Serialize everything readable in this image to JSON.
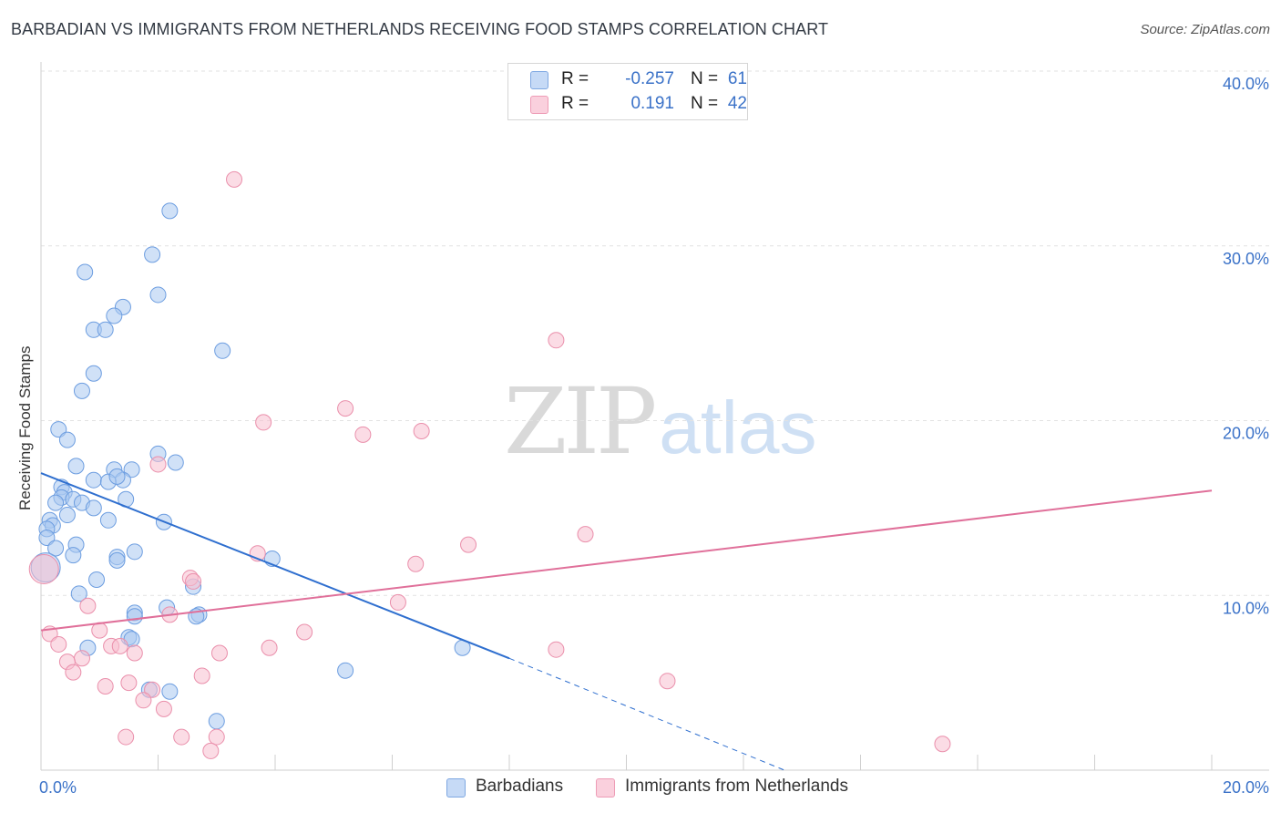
{
  "header": {
    "title": "BARBADIAN VS IMMIGRANTS FROM NETHERLANDS RECEIVING FOOD STAMPS CORRELATION CHART",
    "source": "Source: ZipAtlas.com"
  },
  "watermark": {
    "zip": "ZIP",
    "atlas": "atlas"
  },
  "legend": {
    "rows": [
      {
        "r_label": "R =",
        "r_value": "-0.257",
        "n_label": "N =",
        "n_value": "61",
        "color": "#a9c8f0"
      },
      {
        "r_label": "R =",
        "r_value": "0.191",
        "n_label": "N =",
        "n_value": "42",
        "color": "#f7bfd0"
      }
    ]
  },
  "bottom_legend": {
    "series1": "Barbadians",
    "series2": "Immigrants from Netherlands"
  },
  "chart_data": {
    "type": "scatter",
    "title": "BARBADIAN VS IMMIGRANTS FROM NETHERLANDS RECEIVING FOOD STAMPS CORRELATION CHART",
    "xlabel": "",
    "ylabel": "Receiving Food Stamps",
    "xlim": [
      0,
      20
    ],
    "ylim": [
      0,
      40
    ],
    "x_ticks": [
      0,
      20
    ],
    "x_tick_labels": [
      "0.0%",
      "20.0%"
    ],
    "y_ticks": [
      10,
      20,
      30,
      40
    ],
    "y_tick_labels": [
      "10.0%",
      "20.0%",
      "30.0%",
      "40.0%"
    ],
    "grid": true,
    "series": [
      {
        "name": "Barbadians",
        "color": "#a9c8f0",
        "stroke": "#6c9de0",
        "trend_color": "#2f6fcf",
        "r": -0.257,
        "n": 61,
        "trend": {
          "x0": 0,
          "y0": 17.0,
          "x1": 8.0,
          "y1": 6.4,
          "dash_x1": 12.7,
          "dash_y1": 0
        },
        "points": [
          [
            2.2,
            32.0
          ],
          [
            1.9,
            29.5
          ],
          [
            0.75,
            28.5
          ],
          [
            2.0,
            27.2
          ],
          [
            1.4,
            26.5
          ],
          [
            1.25,
            26.0
          ],
          [
            0.9,
            25.2
          ],
          [
            1.1,
            25.2
          ],
          [
            3.1,
            24.0
          ],
          [
            0.9,
            22.7
          ],
          [
            0.7,
            21.7
          ],
          [
            0.3,
            19.5
          ],
          [
            0.45,
            18.9
          ],
          [
            2.0,
            18.1
          ],
          [
            2.3,
            17.6
          ],
          [
            0.6,
            17.4
          ],
          [
            1.25,
            17.2
          ],
          [
            1.55,
            17.2
          ],
          [
            0.9,
            16.6
          ],
          [
            1.4,
            16.6
          ],
          [
            1.15,
            16.5
          ],
          [
            1.3,
            16.8
          ],
          [
            0.35,
            16.2
          ],
          [
            0.4,
            15.9
          ],
          [
            0.35,
            15.6
          ],
          [
            0.55,
            15.5
          ],
          [
            0.25,
            15.3
          ],
          [
            0.7,
            15.3
          ],
          [
            1.45,
            15.5
          ],
          [
            0.9,
            15.0
          ],
          [
            0.45,
            14.6
          ],
          [
            0.15,
            14.3
          ],
          [
            0.2,
            14.0
          ],
          [
            1.15,
            14.3
          ],
          [
            2.1,
            14.2
          ],
          [
            0.1,
            13.8
          ],
          [
            0.1,
            13.3
          ],
          [
            0.6,
            12.9
          ],
          [
            0.25,
            12.7
          ],
          [
            1.6,
            12.5
          ],
          [
            0.55,
            12.3
          ],
          [
            1.3,
            12.2
          ],
          [
            1.3,
            12.0
          ],
          [
            3.95,
            12.1
          ],
          [
            0.95,
            10.9
          ],
          [
            2.6,
            10.5
          ],
          [
            0.65,
            10.1
          ],
          [
            2.15,
            9.3
          ],
          [
            1.6,
            9.0
          ],
          [
            1.6,
            8.8
          ],
          [
            2.7,
            8.9
          ],
          [
            2.65,
            8.8
          ],
          [
            1.5,
            7.6
          ],
          [
            1.55,
            7.5
          ],
          [
            0.8,
            7.0
          ],
          [
            7.2,
            7.0
          ],
          [
            5.2,
            5.7
          ],
          [
            1.85,
            4.6
          ],
          [
            2.2,
            4.5
          ],
          [
            3.0,
            2.8
          ],
          [
            0.08,
            11.6
          ]
        ]
      },
      {
        "name": "Immigrants from Netherlands",
        "color": "#f7bfd0",
        "stroke": "#ea8fab",
        "trend_color": "#e0709a",
        "r": 0.191,
        "n": 42,
        "trend": {
          "x0": 0,
          "y0": 8.0,
          "x1": 20,
          "y1": 16.0
        },
        "points": [
          [
            3.3,
            33.8
          ],
          [
            8.8,
            24.6
          ],
          [
            5.2,
            20.7
          ],
          [
            3.8,
            19.9
          ],
          [
            5.5,
            19.2
          ],
          [
            6.5,
            19.4
          ],
          [
            2.0,
            17.5
          ],
          [
            9.3,
            13.5
          ],
          [
            7.3,
            12.9
          ],
          [
            3.7,
            12.4
          ],
          [
            6.4,
            11.8
          ],
          [
            2.55,
            11.0
          ],
          [
            2.6,
            10.8
          ],
          [
            6.1,
            9.6
          ],
          [
            0.8,
            9.4
          ],
          [
            2.2,
            8.9
          ],
          [
            1.0,
            8.0
          ],
          [
            4.5,
            7.9
          ],
          [
            0.15,
            7.8
          ],
          [
            0.3,
            7.2
          ],
          [
            1.2,
            7.1
          ],
          [
            1.35,
            7.1
          ],
          [
            3.9,
            7.0
          ],
          [
            8.8,
            6.9
          ],
          [
            3.05,
            6.7
          ],
          [
            1.6,
            6.7
          ],
          [
            0.7,
            6.4
          ],
          [
            0.45,
            6.2
          ],
          [
            0.55,
            5.6
          ],
          [
            2.75,
            5.4
          ],
          [
            10.7,
            5.1
          ],
          [
            1.5,
            5.0
          ],
          [
            1.1,
            4.8
          ],
          [
            1.9,
            4.6
          ],
          [
            1.75,
            4.0
          ],
          [
            2.1,
            3.5
          ],
          [
            1.45,
            1.9
          ],
          [
            2.4,
            1.9
          ],
          [
            3.0,
            1.9
          ],
          [
            2.9,
            1.1
          ],
          [
            15.4,
            1.5
          ],
          [
            0.05,
            11.5
          ]
        ]
      }
    ]
  }
}
